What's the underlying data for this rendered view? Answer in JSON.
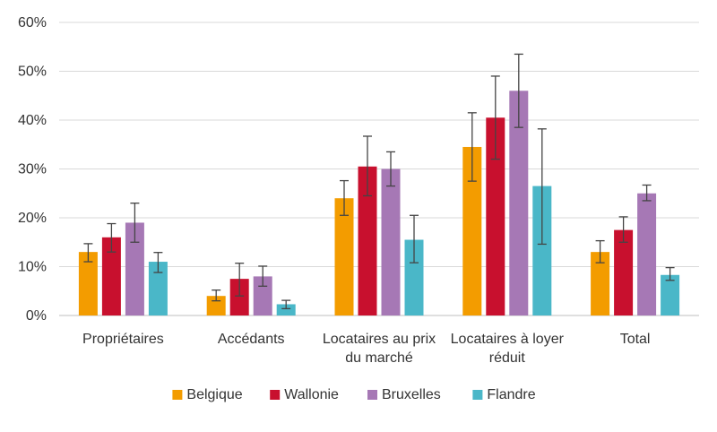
{
  "chart_data": {
    "type": "bar",
    "categories": [
      [
        "Propriétaires"
      ],
      [
        "Accédants"
      ],
      [
        "Locataires au prix",
        "du marché"
      ],
      [
        "Locataires à loyer",
        "réduit"
      ],
      [
        "Total"
      ]
    ],
    "series": [
      {
        "name": "Belgique",
        "color": "#f39c00",
        "values": [
          13,
          4,
          24,
          34.5,
          13
        ],
        "error_low": [
          11,
          3,
          20.5,
          27.5,
          10.8
        ],
        "error_high": [
          14.7,
          5.2,
          27.6,
          41.5,
          15.3
        ]
      },
      {
        "name": "Wallonie",
        "color": "#c8102e",
        "values": [
          16,
          7.5,
          30.5,
          40.5,
          17.5
        ],
        "error_low": [
          13,
          4,
          24.5,
          32,
          15
        ],
        "error_high": [
          18.8,
          10.7,
          36.7,
          49,
          20.2
        ]
      },
      {
        "name": "Bruxelles",
        "color": "#a678b5",
        "values": [
          19,
          8,
          30,
          46,
          25
        ],
        "error_low": [
          15,
          6,
          26.5,
          38.5,
          23.5
        ],
        "error_high": [
          23,
          10.1,
          33.5,
          53.5,
          26.7
        ]
      },
      {
        "name": "Flandre",
        "color": "#4ab7c8",
        "values": [
          11,
          2.3,
          15.5,
          26.5,
          8.3
        ],
        "error_low": [
          8.8,
          1.4,
          10.8,
          14.6,
          7.2
        ],
        "error_high": [
          12.9,
          3.1,
          20.5,
          38.2,
          9.8
        ]
      }
    ],
    "yticks": [
      "0%",
      "10%",
      "20%",
      "30%",
      "40%",
      "50%",
      "60%"
    ],
    "ylim": [
      0,
      60
    ],
    "grid": true,
    "legend_position": "bottom",
    "title": "",
    "xlabel": "",
    "ylabel": ""
  }
}
